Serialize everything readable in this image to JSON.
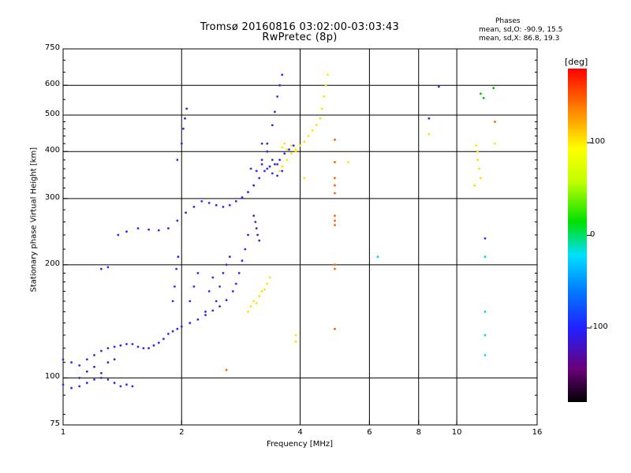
{
  "header": {
    "title_line1": "Tromsø 20160816 03:02:00-03:03:43",
    "title_line2": "RwPretec (8p)",
    "phases_label": "Phases",
    "phases_o": "mean, sd,O: -90.9, 15.5",
    "phases_x": "mean, sd,X:  86.8, 19.3"
  },
  "colorbar": {
    "unit": "[deg]",
    "tick_labels": [
      "100",
      "0",
      "-100"
    ],
    "range": [
      -180,
      180
    ],
    "colors": [
      "#000000",
      "#6a007a",
      "#2020ff",
      "#0080ff",
      "#00e0ff",
      "#00e000",
      "#c0ff00",
      "#ffff00",
      "#ff8000",
      "#ff0000"
    ]
  },
  "chart_data": {
    "type": "scatter",
    "title": "Tromsø 20160816 03:02:00-03:03:43",
    "subtitle": "RwPretec (8p)",
    "xlabel": "Frequency [MHz]",
    "ylabel": "Stationary phase Virtual Height [km]",
    "x_scale": "log",
    "y_scale": "log",
    "xlim": [
      1,
      16
    ],
    "ylim": [
      75,
      750
    ],
    "x_ticks": [
      1,
      2,
      4,
      6,
      8,
      10,
      16
    ],
    "x_tick_labels": [
      "1",
      "2",
      "4",
      "6",
      "8",
      "10",
      "16"
    ],
    "y_ticks": [
      75,
      100,
      200,
      300,
      400,
      500,
      600,
      750
    ],
    "y_tick_labels": [
      "75",
      "100",
      "200",
      "300",
      "400",
      "500",
      "600",
      "750"
    ],
    "grid": true,
    "color_encoding": "phase [deg]",
    "series": [
      {
        "color": "#2a2aff",
        "points": [
          [
            1.0,
            112
          ],
          [
            1.05,
            110
          ],
          [
            1.1,
            108
          ],
          [
            1.15,
            112
          ],
          [
            1.2,
            115
          ],
          [
            1.25,
            118
          ],
          [
            1.3,
            120
          ],
          [
            1.35,
            121
          ],
          [
            1.4,
            122
          ],
          [
            1.45,
            123
          ],
          [
            1.5,
            123
          ],
          [
            1.55,
            121
          ],
          [
            1.6,
            120
          ],
          [
            1.65,
            120
          ],
          [
            1.7,
            122
          ],
          [
            1.75,
            124
          ],
          [
            1.8,
            127
          ],
          [
            1.85,
            131
          ],
          [
            1.9,
            133
          ],
          [
            1.95,
            135
          ],
          [
            2.0,
            137
          ],
          [
            2.1,
            140
          ],
          [
            2.2,
            143
          ],
          [
            2.3,
            147
          ],
          [
            2.4,
            151
          ],
          [
            2.5,
            155
          ],
          [
            2.6,
            161
          ],
          [
            2.7,
            170
          ],
          [
            2.75,
            178
          ],
          [
            2.8,
            190
          ],
          [
            2.85,
            205
          ],
          [
            2.9,
            220
          ],
          [
            2.95,
            240
          ]
        ]
      },
      {
        "color": "#2a2aff",
        "points": [
          [
            1.0,
            96
          ],
          [
            1.05,
            94
          ],
          [
            1.1,
            95
          ],
          [
            1.15,
            97
          ],
          [
            1.2,
            99
          ],
          [
            1.25,
            100
          ],
          [
            1.3,
            99
          ],
          [
            1.35,
            97
          ],
          [
            1.4,
            95
          ],
          [
            1.45,
            96
          ],
          [
            1.5,
            95
          ]
        ]
      },
      {
        "color": "#5020b0",
        "points": [
          [
            1.1,
            100
          ],
          [
            1.15,
            104
          ],
          [
            1.2,
            107
          ],
          [
            1.25,
            103
          ],
          [
            1.3,
            110
          ],
          [
            1.35,
            112
          ]
        ]
      },
      {
        "color": "#2a2aff",
        "points": [
          [
            1.25,
            195
          ],
          [
            1.3,
            197
          ],
          [
            1.38,
            240
          ],
          [
            1.45,
            245
          ],
          [
            1.55,
            250
          ],
          [
            1.65,
            248
          ],
          [
            1.75,
            247
          ],
          [
            1.85,
            250
          ],
          [
            1.95,
            262
          ],
          [
            2.05,
            275
          ],
          [
            2.15,
            285
          ],
          [
            2.25,
            295
          ],
          [
            2.35,
            292
          ],
          [
            2.45,
            288
          ],
          [
            2.55,
            285
          ],
          [
            2.65,
            288
          ],
          [
            2.75,
            295
          ],
          [
            2.85,
            302
          ],
          [
            2.95,
            312
          ],
          [
            3.05,
            325
          ],
          [
            3.15,
            340
          ],
          [
            3.25,
            355
          ],
          [
            3.35,
            365
          ],
          [
            3.45,
            370
          ],
          [
            3.55,
            380
          ],
          [
            3.65,
            395
          ],
          [
            3.75,
            405
          ],
          [
            3.85,
            415
          ]
        ]
      },
      {
        "color": "#2a2aff",
        "points": [
          [
            1.95,
            380
          ],
          [
            2.0,
            420
          ],
          [
            2.02,
            460
          ],
          [
            2.04,
            490
          ],
          [
            2.06,
            520
          ]
        ]
      },
      {
        "color": "#2a2aff",
        "points": [
          [
            1.9,
            160
          ],
          [
            1.92,
            175
          ],
          [
            1.94,
            195
          ],
          [
            1.96,
            210
          ],
          [
            2.1,
            160
          ],
          [
            2.15,
            175
          ],
          [
            2.2,
            190
          ],
          [
            2.3,
            150
          ],
          [
            2.35,
            170
          ],
          [
            2.4,
            185
          ],
          [
            2.45,
            160
          ],
          [
            2.5,
            175
          ],
          [
            2.55,
            190
          ],
          [
            2.6,
            200
          ],
          [
            2.65,
            210
          ]
        ]
      },
      {
        "color": "#2a2aff",
        "points": [
          [
            3.2,
            380
          ],
          [
            3.3,
            420
          ],
          [
            3.4,
            470
          ],
          [
            3.45,
            510
          ],
          [
            3.5,
            560
          ],
          [
            3.55,
            600
          ],
          [
            3.6,
            640
          ]
        ]
      },
      {
        "color": "#2a2aff",
        "points": [
          [
            3.0,
            360
          ],
          [
            3.1,
            355
          ],
          [
            3.2,
            370
          ],
          [
            3.3,
            360
          ],
          [
            3.4,
            350
          ],
          [
            3.5,
            345
          ],
          [
            3.6,
            355
          ]
        ]
      },
      {
        "color": "#5020b0",
        "points": [
          [
            3.05,
            270
          ],
          [
            3.08,
            260
          ],
          [
            3.1,
            250
          ],
          [
            3.12,
            240
          ],
          [
            3.15,
            232
          ]
        ]
      },
      {
        "color": "#5020b0",
        "points": [
          [
            3.2,
            420
          ],
          [
            3.3,
            400
          ],
          [
            3.4,
            380
          ],
          [
            3.5,
            370
          ]
        ]
      },
      {
        "color": "#ffe000",
        "points": [
          [
            3.55,
            355
          ],
          [
            3.6,
            365
          ],
          [
            3.7,
            380
          ],
          [
            3.8,
            395
          ],
          [
            3.9,
            405
          ],
          [
            4.0,
            415
          ],
          [
            4.1,
            425
          ],
          [
            4.2,
            440
          ],
          [
            4.3,
            455
          ],
          [
            4.4,
            470
          ],
          [
            4.5,
            490
          ],
          [
            4.55,
            520
          ],
          [
            4.6,
            560
          ],
          [
            4.65,
            600
          ],
          [
            4.7,
            640
          ]
        ]
      },
      {
        "color": "#ffe000",
        "points": [
          [
            3.6,
            410
          ],
          [
            3.65,
            420
          ],
          [
            3.7,
            405
          ],
          [
            3.8,
            415
          ],
          [
            3.9,
            400
          ]
        ]
      },
      {
        "color": "#ffe000",
        "points": [
          [
            2.95,
            150
          ],
          [
            3.0,
            155
          ],
          [
            3.05,
            160
          ],
          [
            3.1,
            158
          ],
          [
            3.15,
            165
          ],
          [
            3.2,
            170
          ],
          [
            3.25,
            172
          ],
          [
            3.3,
            178
          ],
          [
            3.35,
            185
          ]
        ]
      },
      {
        "color": "#ff6000",
        "points": [
          [
            4.9,
            430
          ],
          [
            4.9,
            375
          ],
          [
            4.9,
            340
          ],
          [
            4.9,
            325
          ],
          [
            4.9,
            310
          ],
          [
            4.9,
            270
          ],
          [
            4.9,
            262
          ],
          [
            4.9,
            255
          ],
          [
            4.9,
            200
          ],
          [
            4.9,
            195
          ],
          [
            4.9,
            135
          ]
        ]
      },
      {
        "color": "#ffe000",
        "points": [
          [
            11.2,
            415
          ],
          [
            11.3,
            400
          ],
          [
            11.3,
            380
          ],
          [
            11.4,
            360
          ],
          [
            11.5,
            340
          ],
          [
            11.1,
            325
          ]
        ]
      },
      {
        "color": "#2a2aff",
        "points": [
          [
            8.5,
            490
          ],
          [
            9.0,
            595
          ],
          [
            11.8,
            235
          ]
        ]
      },
      {
        "color": "#00d0ff",
        "points": [
          [
            6.3,
            210
          ],
          [
            11.8,
            210
          ],
          [
            11.8,
            150
          ],
          [
            11.8,
            130
          ],
          [
            11.8,
            115
          ]
        ]
      },
      {
        "color": "#ffe000",
        "points": [
          [
            8.5,
            445
          ],
          [
            12.5,
            420
          ],
          [
            5.3,
            375
          ],
          [
            4.1,
            340
          ],
          [
            3.9,
            130
          ],
          [
            3.9,
            125
          ]
        ]
      },
      {
        "color": "#ff6000",
        "points": [
          [
            12.5,
            480
          ],
          [
            2.6,
            105
          ]
        ]
      },
      {
        "color": "#00c000",
        "points": [
          [
            12.4,
            590
          ],
          [
            11.5,
            570
          ],
          [
            11.7,
            555
          ]
        ]
      }
    ]
  }
}
